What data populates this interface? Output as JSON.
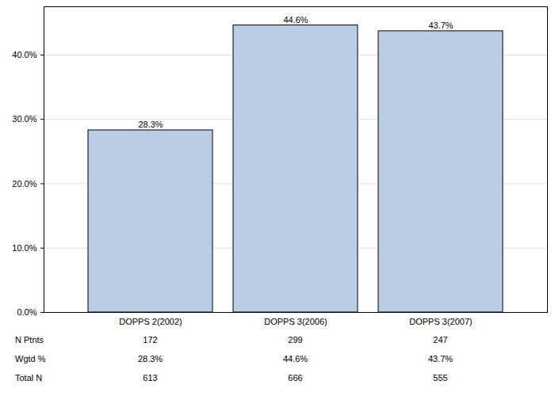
{
  "chart_data": {
    "type": "bar",
    "categories": [
      "DOPPS 2(2002)",
      "DOPPS 3(2006)",
      "DOPPS 3(2007)"
    ],
    "values": [
      28.3,
      44.6,
      43.7
    ],
    "value_labels": [
      "28.3%",
      "44.6%",
      "43.7%"
    ],
    "data_labels": true,
    "color": "#b9cde5",
    "ylim": [
      0,
      47.5
    ],
    "yticks": [
      {
        "value": 0,
        "label": "0.0%"
      },
      {
        "value": 10,
        "label": "10.0%"
      },
      {
        "value": 20,
        "label": "20.0%"
      },
      {
        "value": 30,
        "label": "30.0%"
      },
      {
        "value": 40,
        "label": "40.0%"
      }
    ],
    "grid": true
  },
  "table": {
    "rows": [
      {
        "label": "N Ptnts",
        "cells": [
          "172",
          "299",
          "247"
        ]
      },
      {
        "label": "Wgtd %",
        "cells": [
          "28.3%",
          "44.6%",
          "43.7%"
        ]
      },
      {
        "label": "Total N",
        "cells": [
          "613",
          "666",
          "555"
        ]
      }
    ]
  }
}
